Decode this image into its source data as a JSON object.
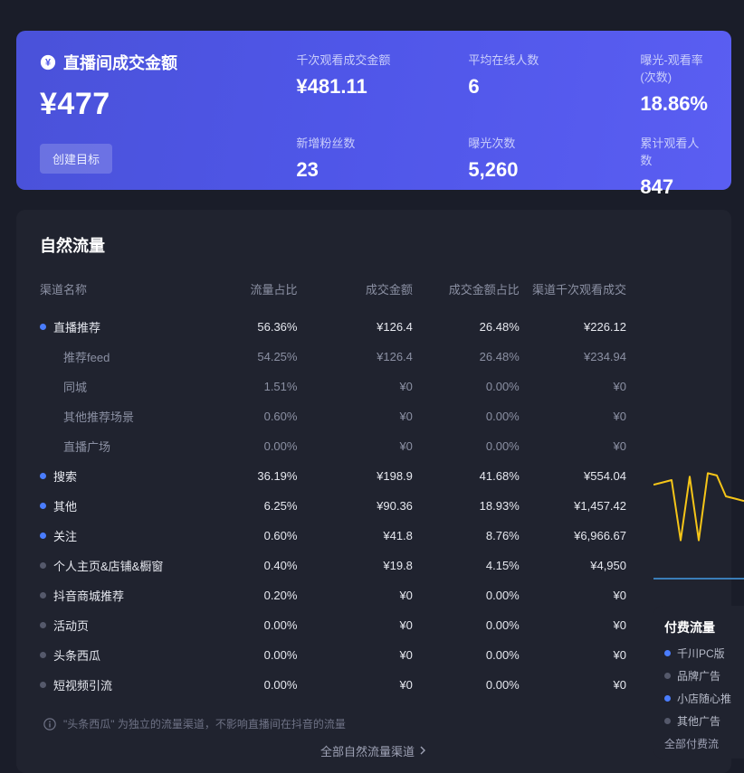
{
  "stats": {
    "main": {
      "icon": "yuan-circle-icon",
      "title": "直播间成交金额",
      "value": "¥477"
    },
    "button_label": "创建目标",
    "cells": [
      {
        "label": "千次观看成交金额",
        "value": "¥481.11"
      },
      {
        "label": "平均在线人数",
        "value": "6"
      },
      {
        "label": "曝光-观看率(次数)",
        "value": "18.86%"
      },
      {
        "label": "新增粉丝数",
        "value": "23"
      },
      {
        "label": "曝光次数",
        "value": "5,260"
      },
      {
        "label": "累计观看人数",
        "value": "847"
      }
    ],
    "bg_gradient": [
      "#4a52d9",
      "#5a5ef2"
    ]
  },
  "traffic": {
    "title": "自然流量",
    "columns": [
      "渠道名称",
      "流量占比",
      "成交金额",
      "成交金额占比",
      "渠道千次观看成交"
    ],
    "col_align": [
      "left",
      "right",
      "right",
      "right",
      "right"
    ],
    "rows": [
      {
        "level": 0,
        "dot": "on",
        "name": "直播推荐",
        "share": "56.36%",
        "gmv": "¥126.4",
        "gmv_share": "26.48%",
        "kv": "¥226.12"
      },
      {
        "level": 1,
        "dot": null,
        "name": "推荐feed",
        "share": "54.25%",
        "gmv": "¥126.4",
        "gmv_share": "26.48%",
        "kv": "¥234.94"
      },
      {
        "level": 1,
        "dot": null,
        "name": "同城",
        "share": "1.51%",
        "gmv": "¥0",
        "gmv_share": "0.00%",
        "kv": "¥0"
      },
      {
        "level": 1,
        "dot": null,
        "name": "其他推荐场景",
        "share": "0.60%",
        "gmv": "¥0",
        "gmv_share": "0.00%",
        "kv": "¥0"
      },
      {
        "level": 1,
        "dot": null,
        "name": "直播广场",
        "share": "0.00%",
        "gmv": "¥0",
        "gmv_share": "0.00%",
        "kv": "¥0"
      },
      {
        "level": 0,
        "dot": "on",
        "name": "搜索",
        "share": "36.19%",
        "gmv": "¥198.9",
        "gmv_share": "41.68%",
        "kv": "¥554.04"
      },
      {
        "level": 0,
        "dot": "on",
        "name": "其他",
        "share": "6.25%",
        "gmv": "¥90.36",
        "gmv_share": "18.93%",
        "kv": "¥1,457.42"
      },
      {
        "level": 0,
        "dot": "on",
        "name": "关注",
        "share": "0.60%",
        "gmv": "¥41.8",
        "gmv_share": "8.76%",
        "kv": "¥6,966.67"
      },
      {
        "level": 0,
        "dot": "off",
        "name": "个人主页&店铺&橱窗",
        "share": "0.40%",
        "gmv": "¥19.8",
        "gmv_share": "4.15%",
        "kv": "¥4,950"
      },
      {
        "level": 0,
        "dot": "off",
        "name": "抖音商城推荐",
        "share": "0.20%",
        "gmv": "¥0",
        "gmv_share": "0.00%",
        "kv": "¥0"
      },
      {
        "level": 0,
        "dot": "off",
        "name": "活动页",
        "share": "0.00%",
        "gmv": "¥0",
        "gmv_share": "0.00%",
        "kv": "¥0"
      },
      {
        "level": 0,
        "dot": "off",
        "name": "头条西瓜",
        "share": "0.00%",
        "gmv": "¥0",
        "gmv_share": "0.00%",
        "kv": "¥0"
      },
      {
        "level": 0,
        "dot": "off",
        "name": "短视频引流",
        "share": "0.00%",
        "gmv": "¥0",
        "gmv_share": "0.00%",
        "kv": "¥0"
      }
    ],
    "footnote": "\"头条西瓜\" 为独立的流量渠道，不影响直播间在抖音的流量",
    "all_link": "全部自然流量渠道",
    "dot_colors": {
      "on": "#4a7dff",
      "off": "#55596b"
    }
  },
  "sparkline": {
    "type": "line",
    "color": "#f5c518",
    "axis_color": "#3a7db8",
    "points_y": [
      0.78,
      0.8,
      0.82,
      0.3,
      0.85,
      0.3,
      0.88,
      0.86,
      0.68,
      0.66,
      0.64
    ]
  },
  "paid_legend": {
    "title": "付费流量",
    "items": [
      {
        "color": "#4a7dff",
        "label": "千川PC版"
      },
      {
        "color": "#55596b",
        "label": "品牌广告"
      },
      {
        "color": "#4a7dff",
        "label": "小店随心推"
      },
      {
        "color": "#55596b",
        "label": "其他广告"
      }
    ],
    "all_link": "全部付费流"
  },
  "colors": {
    "page_bg": "#1a1d29",
    "panel_bg": "#20232f",
    "text_primary": "#e6e8ef",
    "text_secondary": "#8b90a3",
    "text_muted": "#6e7285"
  }
}
